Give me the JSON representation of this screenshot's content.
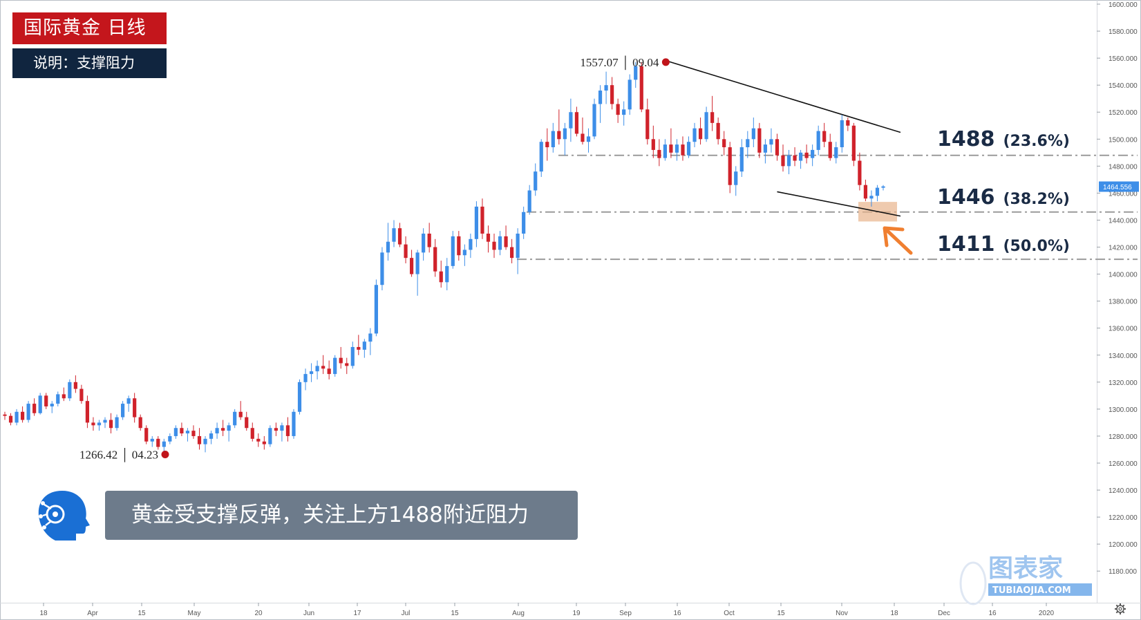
{
  "title_badge": "国际黄金  日线",
  "subtitle_badge": "说明：支撑阻力",
  "note": "黄金受支撑反弹，关注上方1488附近阻力",
  "levels": [
    {
      "price": "1488",
      "pct": "(23.6%)"
    },
    {
      "price": "1446",
      "pct": "(38.2%)"
    },
    {
      "price": "1411",
      "pct": "(50.0%)"
    }
  ],
  "watermark": {
    "main": "图表家",
    "sub": "TUBIAOJIA.COM"
  },
  "colors": {
    "up": "#3d8ee8",
    "down": "#d0222b",
    "badge_red": "#c4161c",
    "badge_navy": "#10253f",
    "note_bg": "#6d7b8b",
    "highlight": "#e8b48b",
    "arrow": "#f07f30",
    "price_tag": "#3d8ee8"
  },
  "chart_data": {
    "type": "candlestick",
    "ylim": [
      1175,
      1600
    ],
    "y_ticks": [
      "1600.000",
      "1580.000",
      "1560.000",
      "1540.000",
      "1520.000",
      "1500.000",
      "1480.000",
      "1460.000",
      "1440.000",
      "1420.000",
      "1400.000",
      "1380.000",
      "1360.000",
      "1340.000",
      "1320.000",
      "1300.000",
      "1280.000",
      "1260.000",
      "1240.000",
      "1220.000",
      "1200.000",
      "1180.000"
    ],
    "x_ticks": [
      "18",
      "Apr",
      "15",
      "May",
      "20",
      "Jun",
      "17",
      "Jul",
      "15",
      "Aug",
      "19",
      "Sep",
      "16",
      "Oct",
      "15",
      "Nov",
      "18",
      "Dec",
      "16",
      "2020"
    ],
    "current_price": "1464.556",
    "annotations": [
      {
        "label_price": "1557.07",
        "label_date": "09.04",
        "price": 1557.07
      },
      {
        "label_price": "1266.42",
        "label_date": "04.23",
        "price": 1266.42
      }
    ],
    "horizontal_levels": [
      1488,
      1446,
      1411
    ],
    "candles": [
      [
        1296,
        1298,
        1292,
        1295
      ],
      [
        1295,
        1297,
        1288,
        1290
      ],
      [
        1290,
        1300,
        1288,
        1298
      ],
      [
        1298,
        1302,
        1290,
        1292
      ],
      [
        1292,
        1306,
        1290,
        1304
      ],
      [
        1304,
        1308,
        1295,
        1297
      ],
      [
        1297,
        1312,
        1296,
        1310
      ],
      [
        1310,
        1312,
        1300,
        1302
      ],
      [
        1302,
        1306,
        1297,
        1304
      ],
      [
        1304,
        1313,
        1302,
        1311
      ],
      [
        1311,
        1316,
        1306,
        1308
      ],
      [
        1308,
        1322,
        1306,
        1320
      ],
      [
        1320,
        1325,
        1312,
        1315
      ],
      [
        1315,
        1318,
        1304,
        1306
      ],
      [
        1306,
        1310,
        1286,
        1290
      ],
      [
        1290,
        1294,
        1284,
        1288
      ],
      [
        1288,
        1292,
        1284,
        1290
      ],
      [
        1290,
        1294,
        1286,
        1292
      ],
      [
        1292,
        1297,
        1282,
        1286
      ],
      [
        1286,
        1296,
        1284,
        1294
      ],
      [
        1294,
        1306,
        1292,
        1304
      ],
      [
        1304,
        1310,
        1298,
        1308
      ],
      [
        1308,
        1312,
        1290,
        1294
      ],
      [
        1294,
        1296,
        1284,
        1286
      ],
      [
        1286,
        1288,
        1274,
        1276
      ],
      [
        1276,
        1280,
        1272,
        1278
      ],
      [
        1278,
        1280,
        1270,
        1272
      ],
      [
        1272,
        1278,
        1268,
        1276
      ],
      [
        1276,
        1282,
        1274,
        1280
      ],
      [
        1280,
        1288,
        1278,
        1286
      ],
      [
        1286,
        1290,
        1280,
        1282
      ],
      [
        1282,
        1286,
        1276,
        1284
      ],
      [
        1284,
        1288,
        1278,
        1280
      ],
      [
        1280,
        1286,
        1270,
        1274
      ],
      [
        1274,
        1280,
        1268,
        1278
      ],
      [
        1278,
        1284,
        1274,
        1282
      ],
      [
        1282,
        1290,
        1278,
        1286
      ],
      [
        1286,
        1292,
        1280,
        1284
      ],
      [
        1284,
        1290,
        1276,
        1288
      ],
      [
        1288,
        1300,
        1286,
        1298
      ],
      [
        1298,
        1306,
        1292,
        1294
      ],
      [
        1294,
        1298,
        1284,
        1286
      ],
      [
        1286,
        1290,
        1276,
        1278
      ],
      [
        1278,
        1282,
        1272,
        1276
      ],
      [
        1276,
        1280,
        1270,
        1274
      ],
      [
        1274,
        1288,
        1272,
        1286
      ],
      [
        1286,
        1290,
        1280,
        1284
      ],
      [
        1284,
        1290,
        1276,
        1288
      ],
      [
        1288,
        1294,
        1276,
        1280
      ],
      [
        1280,
        1300,
        1278,
        1298
      ],
      [
        1298,
        1322,
        1296,
        1320
      ],
      [
        1320,
        1330,
        1314,
        1326
      ],
      [
        1326,
        1334,
        1320,
        1328
      ],
      [
        1328,
        1336,
        1322,
        1332
      ],
      [
        1332,
        1340,
        1326,
        1330
      ],
      [
        1330,
        1336,
        1322,
        1326
      ],
      [
        1326,
        1340,
        1324,
        1338
      ],
      [
        1338,
        1346,
        1330,
        1334
      ],
      [
        1334,
        1338,
        1326,
        1332
      ],
      [
        1332,
        1350,
        1330,
        1346
      ],
      [
        1346,
        1355,
        1340,
        1344
      ],
      [
        1344,
        1352,
        1338,
        1350
      ],
      [
        1350,
        1360,
        1340,
        1356
      ],
      [
        1356,
        1396,
        1354,
        1392
      ],
      [
        1392,
        1420,
        1388,
        1416
      ],
      [
        1416,
        1438,
        1410,
        1424
      ],
      [
        1424,
        1440,
        1420,
        1434
      ],
      [
        1434,
        1438,
        1420,
        1422
      ],
      [
        1422,
        1428,
        1408,
        1412
      ],
      [
        1412,
        1418,
        1398,
        1400
      ],
      [
        1400,
        1418,
        1384,
        1416
      ],
      [
        1416,
        1434,
        1410,
        1430
      ],
      [
        1430,
        1438,
        1416,
        1420
      ],
      [
        1420,
        1426,
        1398,
        1402
      ],
      [
        1402,
        1410,
        1390,
        1394
      ],
      [
        1394,
        1412,
        1388,
        1406
      ],
      [
        1406,
        1432,
        1404,
        1428
      ],
      [
        1428,
        1432,
        1410,
        1414
      ],
      [
        1414,
        1422,
        1406,
        1418
      ],
      [
        1418,
        1430,
        1412,
        1426
      ],
      [
        1426,
        1454,
        1420,
        1450
      ],
      [
        1450,
        1456,
        1426,
        1430
      ],
      [
        1430,
        1436,
        1416,
        1424
      ],
      [
        1424,
        1430,
        1412,
        1418
      ],
      [
        1418,
        1432,
        1414,
        1428
      ],
      [
        1428,
        1436,
        1418,
        1420
      ],
      [
        1420,
        1426,
        1408,
        1412
      ],
      [
        1412,
        1434,
        1400,
        1430
      ],
      [
        1430,
        1450,
        1426,
        1446
      ],
      [
        1446,
        1466,
        1444,
        1462
      ],
      [
        1462,
        1482,
        1458,
        1476
      ],
      [
        1476,
        1500,
        1472,
        1498
      ],
      [
        1498,
        1508,
        1484,
        1494
      ],
      [
        1494,
        1512,
        1490,
        1506
      ],
      [
        1506,
        1522,
        1496,
        1500
      ],
      [
        1500,
        1512,
        1488,
        1508
      ],
      [
        1508,
        1530,
        1498,
        1520
      ],
      [
        1520,
        1524,
        1502,
        1504
      ],
      [
        1504,
        1516,
        1496,
        1498
      ],
      [
        1498,
        1508,
        1490,
        1502
      ],
      [
        1502,
        1530,
        1500,
        1526
      ],
      [
        1526,
        1540,
        1512,
        1536
      ],
      [
        1536,
        1550,
        1526,
        1540
      ],
      [
        1540,
        1546,
        1522,
        1526
      ],
      [
        1526,
        1530,
        1512,
        1518
      ],
      [
        1518,
        1528,
        1510,
        1522
      ],
      [
        1522,
        1548,
        1518,
        1544
      ],
      [
        1544,
        1557,
        1538,
        1554
      ],
      [
        1554,
        1557,
        1520,
        1522
      ],
      [
        1522,
        1530,
        1496,
        1500
      ],
      [
        1500,
        1510,
        1486,
        1492
      ],
      [
        1492,
        1500,
        1480,
        1486
      ],
      [
        1486,
        1500,
        1484,
        1496
      ],
      [
        1496,
        1508,
        1486,
        1490
      ],
      [
        1490,
        1500,
        1484,
        1496
      ],
      [
        1496,
        1502,
        1484,
        1488
      ],
      [
        1488,
        1502,
        1486,
        1498
      ],
      [
        1498,
        1512,
        1494,
        1508
      ],
      [
        1508,
        1516,
        1496,
        1500
      ],
      [
        1500,
        1524,
        1498,
        1520
      ],
      [
        1520,
        1532,
        1506,
        1512
      ],
      [
        1512,
        1516,
        1496,
        1500
      ],
      [
        1500,
        1506,
        1488,
        1494
      ],
      [
        1494,
        1498,
        1460,
        1466
      ],
      [
        1466,
        1480,
        1458,
        1476
      ],
      [
        1476,
        1500,
        1472,
        1494
      ],
      [
        1494,
        1506,
        1486,
        1500
      ],
      [
        1500,
        1516,
        1494,
        1508
      ],
      [
        1508,
        1512,
        1486,
        1490
      ],
      [
        1490,
        1500,
        1482,
        1496
      ],
      [
        1496,
        1508,
        1490,
        1500
      ],
      [
        1500,
        1504,
        1484,
        1488
      ],
      [
        1488,
        1496,
        1476,
        1480
      ],
      [
        1480,
        1492,
        1474,
        1488
      ],
      [
        1488,
        1494,
        1480,
        1484
      ],
      [
        1484,
        1492,
        1478,
        1490
      ],
      [
        1490,
        1496,
        1482,
        1486
      ],
      [
        1486,
        1496,
        1480,
        1492
      ],
      [
        1492,
        1510,
        1488,
        1506
      ],
      [
        1506,
        1512,
        1494,
        1498
      ],
      [
        1498,
        1504,
        1484,
        1486
      ],
      [
        1486,
        1498,
        1482,
        1494
      ],
      [
        1494,
        1518,
        1490,
        1514
      ],
      [
        1514,
        1516,
        1506,
        1510
      ],
      [
        1510,
        1512,
        1480,
        1484
      ],
      [
        1484,
        1490,
        1462,
        1466
      ],
      [
        1466,
        1470,
        1454,
        1456
      ],
      [
        1456,
        1462,
        1450,
        1458
      ],
      [
        1458,
        1466,
        1454,
        1464
      ],
      [
        1464,
        1466,
        1462,
        1465
      ]
    ]
  }
}
